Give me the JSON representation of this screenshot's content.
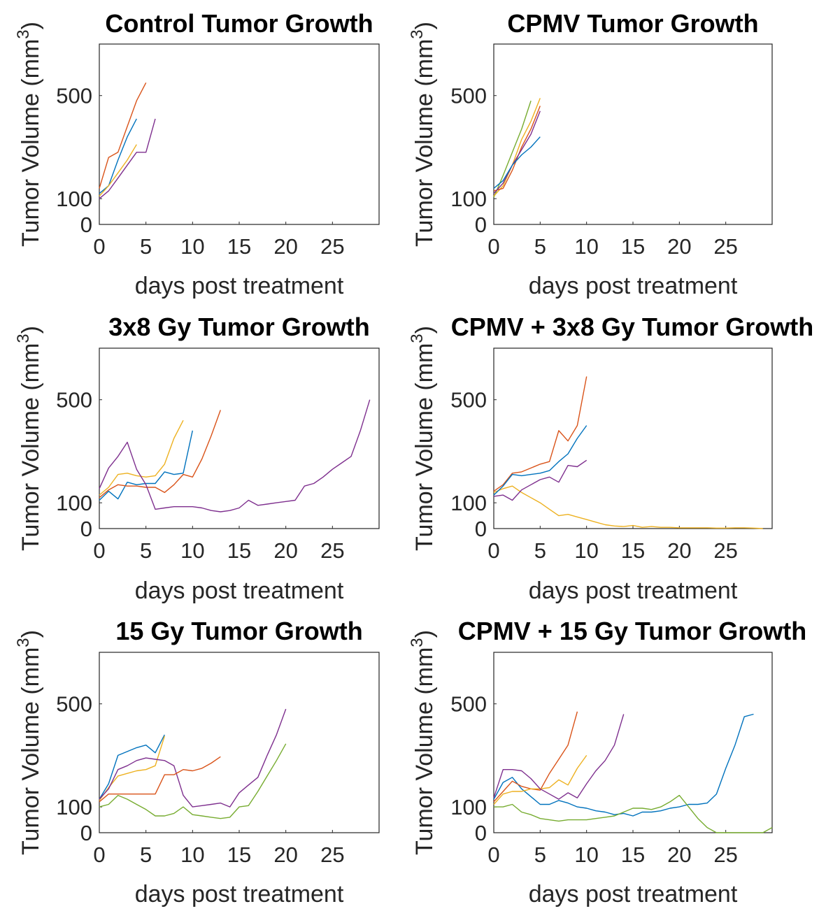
{
  "colors": {
    "blue": "#0072BD",
    "orange": "#D95319",
    "yellow": "#EDB120",
    "purple": "#7E2F8E",
    "green": "#77AC30"
  },
  "chart_data": [
    {
      "type": "line",
      "title": "Control Tumor Growth",
      "xlabel": "days post treatment",
      "ylabel": "Tumor Volume (mm",
      "ylabel_sup": "3",
      "ylabel_close": ")",
      "xlim": [
        0,
        30
      ],
      "ylim": [
        0,
        700
      ],
      "xticks": [
        0,
        5,
        10,
        15,
        20,
        25
      ],
      "yticks": [
        0,
        100,
        500
      ],
      "series": [
        {
          "name": "blue",
          "color": "blue",
          "x": [
            0,
            1,
            2,
            3,
            4
          ],
          "y": [
            120,
            150,
            250,
            340,
            410
          ]
        },
        {
          "name": "orange",
          "color": "orange",
          "x": [
            0,
            1,
            2,
            3,
            4,
            5
          ],
          "y": [
            140,
            260,
            280,
            380,
            480,
            550
          ]
        },
        {
          "name": "yellow",
          "color": "yellow",
          "x": [
            0,
            1,
            2,
            3,
            4
          ],
          "y": [
            110,
            150,
            200,
            250,
            310
          ]
        },
        {
          "name": "purple",
          "color": "purple",
          "x": [
            0,
            1,
            2,
            3,
            4,
            5,
            6
          ],
          "y": [
            100,
            130,
            180,
            230,
            280,
            280,
            410
          ]
        }
      ]
    },
    {
      "type": "line",
      "title": "CPMV Tumor Growth",
      "xlabel": "days post treatment",
      "ylabel": "Tumor Volume (mm",
      "ylabel_sup": "3",
      "ylabel_close": ")",
      "xlim": [
        0,
        30
      ],
      "ylim": [
        0,
        700
      ],
      "xticks": [
        0,
        5,
        10,
        15,
        20,
        25
      ],
      "yticks": [
        0,
        100,
        500
      ],
      "series": [
        {
          "name": "green",
          "color": "green",
          "x": [
            0,
            1,
            2,
            3,
            4
          ],
          "y": [
            105,
            190,
            280,
            370,
            480
          ]
        },
        {
          "name": "yellow",
          "color": "yellow",
          "x": [
            0,
            1,
            2,
            3,
            4,
            5
          ],
          "y": [
            110,
            150,
            230,
            330,
            400,
            490
          ]
        },
        {
          "name": "orange",
          "color": "orange",
          "x": [
            0,
            1,
            2,
            3,
            4,
            5
          ],
          "y": [
            130,
            140,
            210,
            300,
            370,
            460
          ]
        },
        {
          "name": "purple",
          "color": "purple",
          "x": [
            0,
            1,
            2,
            3,
            4,
            5
          ],
          "y": [
            120,
            160,
            230,
            290,
            350,
            440
          ]
        },
        {
          "name": "blue",
          "color": "blue",
          "x": [
            0,
            1,
            2,
            3,
            4,
            5
          ],
          "y": [
            140,
            170,
            230,
            270,
            300,
            340
          ]
        }
      ]
    },
    {
      "type": "line",
      "title": "3x8 Gy Tumor Growth",
      "xlabel": "days post treatment",
      "ylabel": "Tumor Volume (mm",
      "ylabel_sup": "3",
      "ylabel_close": ")",
      "xlim": [
        0,
        30
      ],
      "ylim": [
        0,
        700
      ],
      "xticks": [
        0,
        5,
        10,
        15,
        20,
        25
      ],
      "yticks": [
        0,
        100,
        500
      ],
      "series": [
        {
          "name": "blue",
          "color": "blue",
          "x": [
            0,
            1,
            2,
            3,
            4,
            5,
            6,
            7,
            8,
            9,
            10
          ],
          "y": [
            110,
            145,
            115,
            180,
            170,
            175,
            175,
            220,
            210,
            215,
            380
          ]
        },
        {
          "name": "orange",
          "color": "orange",
          "x": [
            0,
            1,
            2,
            3,
            4,
            5,
            6,
            7,
            8,
            9,
            10,
            11,
            12,
            13
          ],
          "y": [
            120,
            150,
            170,
            165,
            165,
            160,
            160,
            140,
            170,
            210,
            200,
            270,
            360,
            460
          ]
        },
        {
          "name": "yellow",
          "color": "yellow",
          "x": [
            0,
            1,
            2,
            3,
            4,
            5,
            6,
            7,
            8,
            9
          ],
          "y": [
            130,
            160,
            210,
            215,
            205,
            200,
            205,
            250,
            350,
            420
          ]
        },
        {
          "name": "purple",
          "color": "purple",
          "x": [
            0,
            1,
            2,
            3,
            4,
            5,
            6,
            7,
            8,
            9,
            10,
            11,
            12,
            13,
            14,
            15,
            16,
            17,
            18,
            19,
            20,
            21,
            22,
            23,
            24,
            25,
            26,
            27,
            28,
            29
          ],
          "y": [
            155,
            235,
            280,
            335,
            230,
            170,
            75,
            80,
            85,
            85,
            85,
            80,
            70,
            65,
            70,
            80,
            110,
            90,
            95,
            100,
            105,
            110,
            165,
            175,
            200,
            230,
            255,
            280,
            380,
            500
          ]
        }
      ]
    },
    {
      "type": "line",
      "title": "CPMV + 3x8 Gy Tumor Growth",
      "xlabel": "days post treatment",
      "ylabel": "Tumor Volume (mm",
      "ylabel_sup": "3",
      "ylabel_close": ")",
      "xlim": [
        0,
        30
      ],
      "ylim": [
        0,
        700
      ],
      "xticks": [
        0,
        5,
        10,
        15,
        20,
        25
      ],
      "yticks": [
        0,
        100,
        500
      ],
      "series": [
        {
          "name": "yellow",
          "color": "yellow",
          "x": [
            0,
            1,
            2,
            3,
            4,
            5,
            6,
            7,
            8,
            9,
            10,
            11,
            12,
            13,
            14,
            15,
            16,
            17,
            18,
            19,
            20,
            21,
            22,
            23,
            24,
            25,
            26,
            27,
            28,
            29
          ],
          "y": [
            140,
            155,
            165,
            140,
            120,
            100,
            75,
            50,
            55,
            45,
            35,
            25,
            15,
            10,
            8,
            12,
            5,
            8,
            5,
            5,
            3,
            3,
            3,
            3,
            2,
            2,
            3,
            3,
            2,
            0
          ]
        },
        {
          "name": "orange",
          "color": "orange",
          "x": [
            0,
            1,
            2,
            3,
            4,
            5,
            6,
            7,
            8,
            9,
            10
          ],
          "y": [
            145,
            170,
            215,
            220,
            235,
            250,
            260,
            380,
            340,
            400,
            590
          ]
        },
        {
          "name": "blue",
          "color": "blue",
          "x": [
            0,
            1,
            2,
            3,
            4,
            5,
            6,
            7,
            8,
            9,
            10
          ],
          "y": [
            130,
            165,
            210,
            205,
            210,
            215,
            225,
            260,
            290,
            350,
            400
          ]
        },
        {
          "name": "purple",
          "color": "purple",
          "x": [
            0,
            1,
            2,
            3,
            4,
            5,
            6,
            7,
            8,
            9,
            10
          ],
          "y": [
            125,
            130,
            110,
            150,
            170,
            190,
            200,
            180,
            245,
            240,
            265
          ]
        }
      ]
    },
    {
      "type": "line",
      "title": "15 Gy Tumor Growth",
      "xlabel": "days post treatment",
      "ylabel": "Tumor Volume (mm",
      "ylabel_sup": "3",
      "ylabel_close": ")",
      "xlim": [
        0,
        30
      ],
      "ylim": [
        0,
        700
      ],
      "xticks": [
        0,
        5,
        10,
        15,
        20,
        25
      ],
      "yticks": [
        0,
        100,
        500
      ],
      "series": [
        {
          "name": "blue",
          "color": "blue",
          "x": [
            0,
            1,
            2,
            3,
            4,
            5,
            6,
            7
          ],
          "y": [
            130,
            190,
            300,
            315,
            330,
            340,
            310,
            380
          ]
        },
        {
          "name": "yellow",
          "color": "yellow",
          "x": [
            0,
            1,
            2,
            3,
            4,
            5,
            6,
            7
          ],
          "y": [
            125,
            175,
            220,
            230,
            240,
            245,
            260,
            375
          ]
        },
        {
          "name": "purple",
          "color": "purple",
          "x": [
            0,
            1,
            2,
            3,
            4,
            5,
            6,
            7,
            8,
            9,
            10,
            11,
            12,
            13,
            14,
            15,
            16,
            17,
            18,
            19,
            20
          ],
          "y": [
            130,
            170,
            245,
            260,
            280,
            290,
            285,
            280,
            260,
            145,
            100,
            105,
            110,
            115,
            100,
            155,
            185,
            215,
            300,
            380,
            480
          ]
        },
        {
          "name": "orange",
          "color": "orange",
          "x": [
            0,
            1,
            2,
            3,
            4,
            5,
            6,
            7,
            8,
            9,
            10,
            11,
            12,
            13
          ],
          "y": [
            120,
            150,
            150,
            150,
            150,
            150,
            150,
            225,
            225,
            245,
            240,
            250,
            270,
            295
          ]
        },
        {
          "name": "green",
          "color": "green",
          "x": [
            0,
            1,
            2,
            3,
            4,
            5,
            6,
            7,
            8,
            9,
            10,
            11,
            12,
            13,
            14,
            15,
            16,
            17,
            18,
            19,
            20
          ],
          "y": [
            100,
            110,
            145,
            130,
            110,
            90,
            65,
            65,
            75,
            100,
            70,
            65,
            60,
            55,
            60,
            100,
            105,
            160,
            220,
            280,
            345
          ]
        }
      ]
    },
    {
      "type": "line",
      "title": "CPMV + 15 Gy Tumor Growth",
      "xlabel": "days post treatment",
      "ylabel": "Tumor Volume (mm",
      "ylabel_sup": "3",
      "ylabel_close": ")",
      "xlim": [
        0,
        30
      ],
      "ylim": [
        0,
        700
      ],
      "xticks": [
        0,
        5,
        10,
        15,
        20,
        25
      ],
      "yticks": [
        0,
        100,
        500
      ],
      "series": [
        {
          "name": "blue",
          "color": "blue",
          "x": [
            0,
            1,
            2,
            3,
            4,
            5,
            6,
            7,
            8,
            9,
            10,
            11,
            12,
            13,
            14,
            15,
            16,
            17,
            18,
            19,
            20,
            21,
            22,
            23,
            24,
            25,
            26,
            27,
            28
          ],
          "y": [
            130,
            195,
            215,
            170,
            140,
            110,
            110,
            125,
            115,
            100,
            95,
            85,
            80,
            70,
            75,
            65,
            80,
            80,
            85,
            95,
            100,
            110,
            110,
            115,
            150,
            250,
            340,
            450,
            460
          ]
        },
        {
          "name": "orange",
          "color": "orange",
          "x": [
            0,
            1,
            2,
            3,
            4,
            5,
            6,
            7,
            8,
            9
          ],
          "y": [
            120,
            160,
            200,
            180,
            170,
            165,
            230,
            285,
            340,
            470
          ]
        },
        {
          "name": "yellow",
          "color": "yellow",
          "x": [
            0,
            1,
            2,
            3,
            4,
            5,
            6,
            7,
            8,
            9,
            10
          ],
          "y": [
            110,
            150,
            160,
            160,
            170,
            170,
            175,
            205,
            185,
            250,
            300
          ]
        },
        {
          "name": "purple",
          "color": "purple",
          "x": [
            0,
            1,
            2,
            3,
            4,
            5,
            6,
            7,
            8,
            9,
            10,
            11,
            12,
            13,
            14
          ],
          "y": [
            135,
            245,
            245,
            240,
            210,
            170,
            150,
            130,
            155,
            135,
            190,
            240,
            280,
            340,
            460
          ]
        },
        {
          "name": "green",
          "color": "green",
          "x": [
            0,
            1,
            2,
            3,
            4,
            5,
            6,
            7,
            8,
            9,
            10,
            11,
            12,
            13,
            14,
            15,
            16,
            17,
            18,
            19,
            20,
            21,
            22,
            23,
            24,
            25,
            26,
            27,
            28,
            29,
            30
          ],
          "y": [
            100,
            100,
            110,
            80,
            70,
            55,
            50,
            45,
            50,
            50,
            50,
            55,
            60,
            65,
            80,
            95,
            95,
            90,
            100,
            120,
            145,
            100,
            55,
            20,
            0,
            0,
            0,
            0,
            0,
            0,
            20
          ]
        }
      ]
    }
  ]
}
